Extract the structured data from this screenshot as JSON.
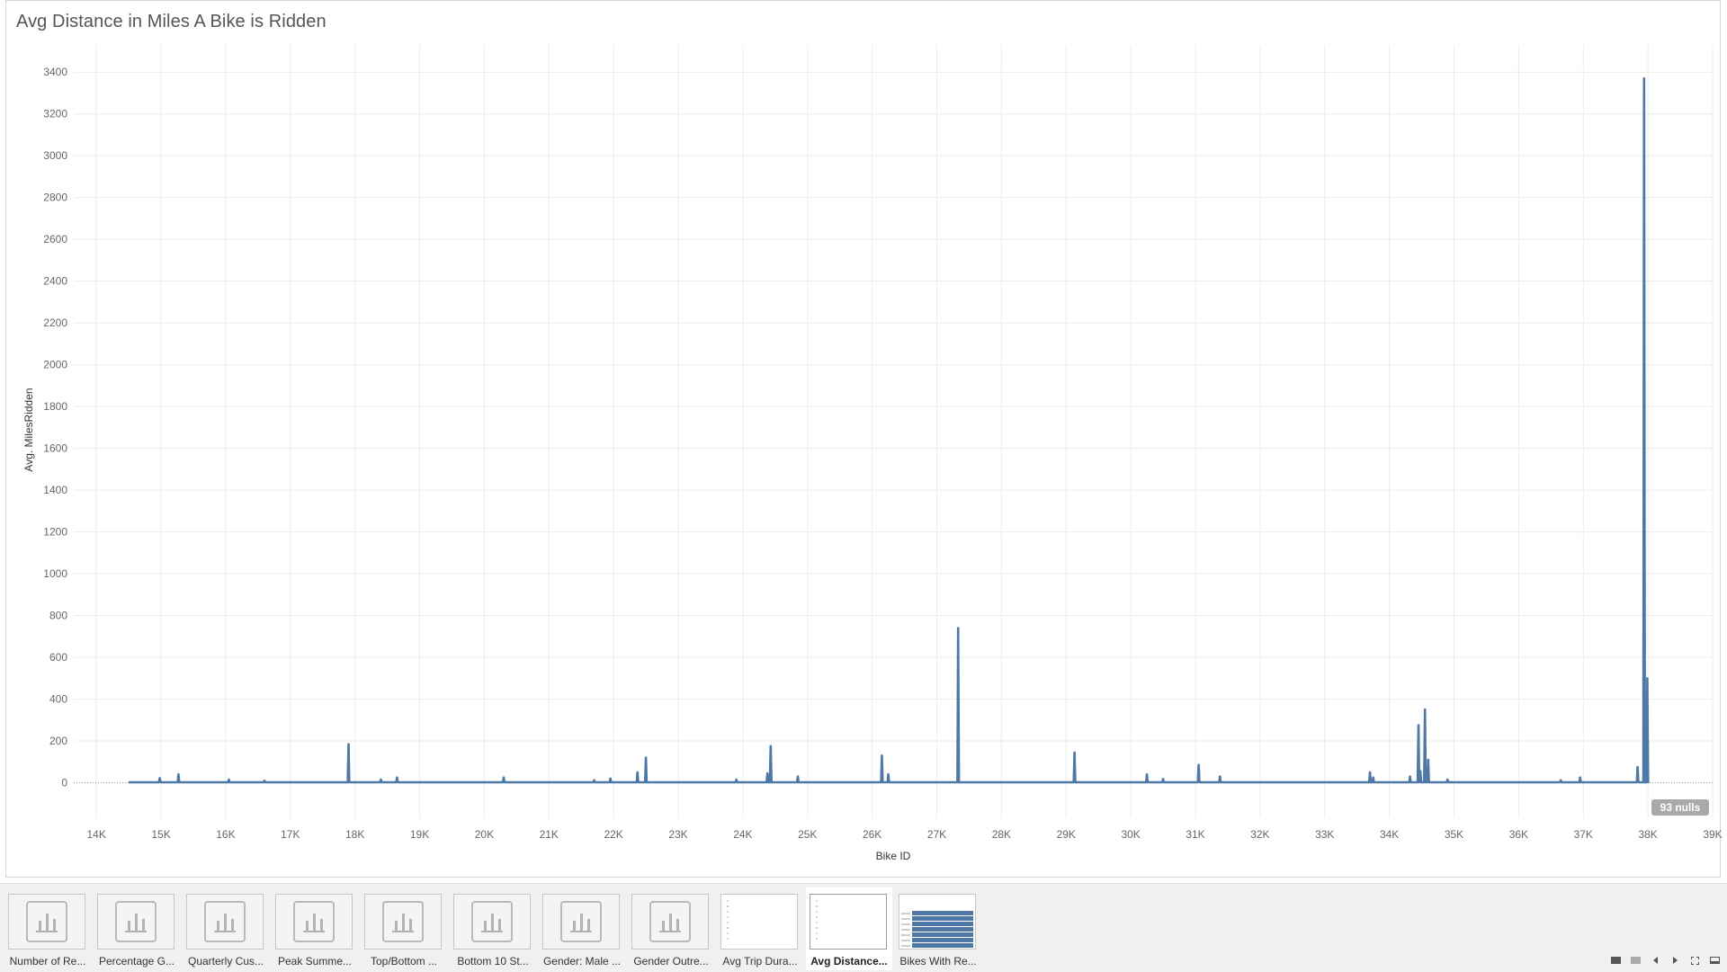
{
  "colors": {
    "line": "#4e79a7",
    "grid": "#ececec",
    "zero_line": "#9a9a9a",
    "nulls_badge": "#a9a9a9"
  },
  "chart_data": {
    "type": "line",
    "title": "Avg Distance in Miles A Bike is Ridden",
    "xlabel": "Bike ID",
    "ylabel": "Avg. MilesRidden",
    "xlim": [
      13650,
      39000
    ],
    "ylim": [
      -170,
      3530
    ],
    "x_ticks": [
      14000,
      15000,
      16000,
      17000,
      18000,
      19000,
      20000,
      21000,
      22000,
      23000,
      24000,
      25000,
      26000,
      27000,
      28000,
      29000,
      30000,
      31000,
      32000,
      33000,
      34000,
      35000,
      36000,
      37000,
      38000,
      39000
    ],
    "x_tick_labels": [
      "14K",
      "15K",
      "16K",
      "17K",
      "18K",
      "19K",
      "20K",
      "21K",
      "22K",
      "23K",
      "24K",
      "25K",
      "26K",
      "27K",
      "28K",
      "29K",
      "30K",
      "31K",
      "32K",
      "33K",
      "34K",
      "35K",
      "36K",
      "37K",
      "38K",
      "39K"
    ],
    "y_ticks": [
      0,
      200,
      400,
      600,
      800,
      1000,
      1200,
      1400,
      1600,
      1800,
      2000,
      2200,
      2400,
      2600,
      2800,
      3000,
      3200,
      3400
    ],
    "y_tick_labels": [
      "0",
      "200",
      "400",
      "600",
      "800",
      "1000",
      "1200",
      "1400",
      "1600",
      "1800",
      "2000",
      "2200",
      "2400",
      "2600",
      "2800",
      "3000",
      "3200",
      "3400"
    ],
    "grid": true,
    "nulls_indicator": "93 nulls",
    "series": [
      {
        "x_range": [
          14500,
          38000
        ],
        "baseline": 2,
        "spikes": [
          {
            "x": 14980,
            "y": 22
          },
          {
            "x": 15270,
            "y": 40
          },
          {
            "x": 16050,
            "y": 15
          },
          {
            "x": 16600,
            "y": 10
          },
          {
            "x": 17900,
            "y": 185
          },
          {
            "x": 18400,
            "y": 15
          },
          {
            "x": 18650,
            "y": 25
          },
          {
            "x": 20300,
            "y": 25
          },
          {
            "x": 21700,
            "y": 12
          },
          {
            "x": 21950,
            "y": 20
          },
          {
            "x": 22370,
            "y": 50
          },
          {
            "x": 22500,
            "y": 120
          },
          {
            "x": 23900,
            "y": 15
          },
          {
            "x": 24380,
            "y": 45
          },
          {
            "x": 24430,
            "y": 175
          },
          {
            "x": 24850,
            "y": 30
          },
          {
            "x": 26150,
            "y": 130
          },
          {
            "x": 26250,
            "y": 40
          },
          {
            "x": 27330,
            "y": 740
          },
          {
            "x": 29130,
            "y": 145
          },
          {
            "x": 30250,
            "y": 40
          },
          {
            "x": 30500,
            "y": 18
          },
          {
            "x": 31050,
            "y": 85
          },
          {
            "x": 31380,
            "y": 30
          },
          {
            "x": 33700,
            "y": 50
          },
          {
            "x": 33750,
            "y": 25
          },
          {
            "x": 34320,
            "y": 30
          },
          {
            "x": 34450,
            "y": 275
          },
          {
            "x": 34480,
            "y": 55
          },
          {
            "x": 34550,
            "y": 350
          },
          {
            "x": 34600,
            "y": 110
          },
          {
            "x": 34900,
            "y": 15
          },
          {
            "x": 36650,
            "y": 12
          },
          {
            "x": 36950,
            "y": 25
          },
          {
            "x": 37840,
            "y": 75
          },
          {
            "x": 37940,
            "y": 3370
          },
          {
            "x": 37990,
            "y": 500
          }
        ]
      }
    ]
  },
  "tabs": [
    {
      "label": "Number of Re...",
      "active": false,
      "thumb": "chart-icon"
    },
    {
      "label": "Percentage G...",
      "active": false,
      "thumb": "chart-icon"
    },
    {
      "label": "Quarterly Cus...",
      "active": false,
      "thumb": "chart-icon"
    },
    {
      "label": "Peak Summe...",
      "active": false,
      "thumb": "chart-icon"
    },
    {
      "label": "Top/Bottom ...",
      "active": false,
      "thumb": "chart-icon"
    },
    {
      "label": "Bottom 10 St...",
      "active": false,
      "thumb": "chart-icon"
    },
    {
      "label": "Gender: Male ...",
      "active": false,
      "thumb": "chart-icon"
    },
    {
      "label": "Gender Outre...",
      "active": false,
      "thumb": "chart-icon"
    },
    {
      "label": "Avg Trip Dura...",
      "active": false,
      "thumb": "blank-preview"
    },
    {
      "label": "Avg Distance...",
      "active": true,
      "thumb": "blank-preview"
    },
    {
      "label": "Bikes With Re...",
      "active": false,
      "thumb": "bar-preview"
    }
  ],
  "controls": [
    {
      "name": "show-sheets-icon"
    },
    {
      "name": "show-filmstrip-icon"
    },
    {
      "name": "previous-sheet-icon"
    },
    {
      "name": "next-sheet-icon"
    },
    {
      "name": "fullscreen-icon"
    },
    {
      "name": "presentation-mode-icon"
    }
  ]
}
